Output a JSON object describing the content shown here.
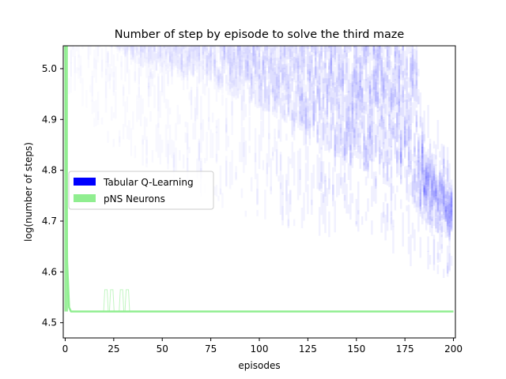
{
  "chart_data": {
    "type": "line",
    "title": "Number of step by episode to solve the third maze",
    "xlabel": "episodes",
    "ylabel": "log(number of steps)",
    "xlim": [
      -1,
      201
    ],
    "ylim": [
      4.47,
      5.045
    ],
    "x_ticks": [
      0,
      25,
      50,
      75,
      100,
      125,
      150,
      175,
      200
    ],
    "y_ticks": [
      4.5,
      4.6,
      4.7,
      4.8,
      4.9,
      5.0
    ],
    "y_tick_labels": [
      "4.5",
      "4.6",
      "4.7",
      "4.8",
      "4.9",
      "5.0"
    ],
    "legend_position": "center-left",
    "grid": false,
    "series": [
      {
        "name": "Tabular Q-Learning",
        "color": "#0000ff",
        "style": "overlaid semi-transparent runs",
        "x": [
          0,
          10,
          20,
          40,
          60,
          80,
          100,
          120,
          130,
          140,
          150,
          160,
          170,
          180,
          185,
          190,
          195,
          199
        ],
        "y_low": [
          4.95,
          4.92,
          4.85,
          4.8,
          4.76,
          4.72,
          4.7,
          4.68,
          4.67,
          4.66,
          4.65,
          4.64,
          4.63,
          4.6,
          4.59,
          4.58,
          4.58,
          4.6
        ],
        "y_high": [
          5.05,
          5.05,
          5.05,
          5.05,
          5.05,
          5.05,
          5.05,
          5.05,
          5.05,
          5.05,
          5.05,
          5.05,
          5.05,
          5.05,
          4.9,
          4.85,
          4.83,
          4.8
        ],
        "dense_low": [
          5.05,
          5.05,
          5.05,
          5.0,
          4.98,
          4.95,
          4.92,
          4.88,
          4.85,
          4.82,
          4.8,
          4.78,
          4.76,
          4.72,
          4.7,
          4.68,
          4.66,
          4.66
        ],
        "dense_high": [
          5.05,
          5.05,
          5.05,
          5.05,
          5.05,
          5.05,
          5.05,
          5.05,
          5.05,
          5.05,
          5.05,
          5.05,
          5.05,
          5.05,
          4.8,
          4.78,
          4.76,
          4.74
        ],
        "density": [
          0.03,
          0.05,
          0.08,
          0.12,
          0.16,
          0.2,
          0.3,
          0.38,
          0.42,
          0.45,
          0.48,
          0.5,
          0.5,
          0.5,
          0.5,
          0.5,
          0.5,
          0.5
        ]
      },
      {
        "name": "pNS Neurons",
        "color": "#90ee90",
        "style": "line",
        "x": [
          0,
          1,
          2,
          3,
          4,
          200
        ],
        "y": [
          5.05,
          4.62,
          4.53,
          4.522,
          4.522,
          4.522
        ],
        "spikes": [
          {
            "x": 21,
            "peak": 4.565
          },
          {
            "x": 24,
            "peak": 4.565
          },
          {
            "x": 29,
            "peak": 4.565
          },
          {
            "x": 32,
            "peak": 4.565
          }
        ],
        "start_band": {
          "x_start": 0,
          "x_end": 1,
          "y_low": 4.522,
          "y_high": 5.05
        }
      }
    ]
  }
}
